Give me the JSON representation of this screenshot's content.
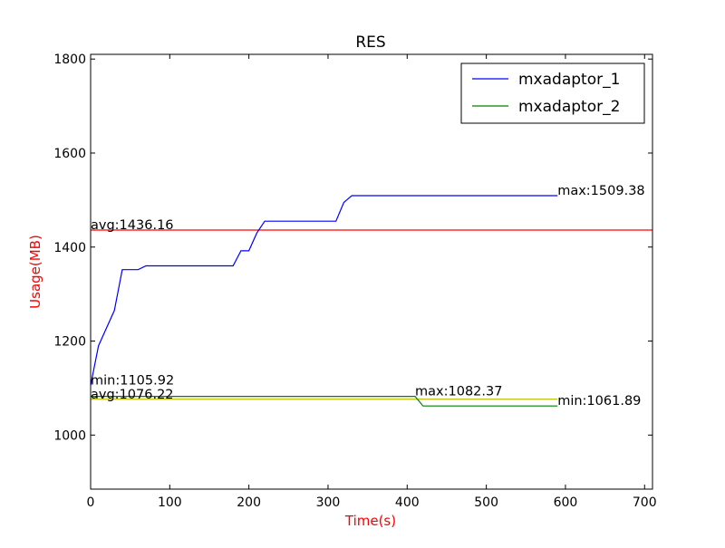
{
  "chart_data": {
    "type": "line",
    "title": "RES",
    "xlabel": "Time(s)",
    "ylabel": "Usage(MB)",
    "label_color": "#ff0000",
    "xlim": [
      0,
      710
    ],
    "ylim": [
      885,
      1810
    ],
    "xticks": [
      0,
      100,
      200,
      300,
      400,
      500,
      600,
      700
    ],
    "yticks": [
      1000,
      1200,
      1400,
      1600,
      1800
    ],
    "grid": false,
    "legend_position": "top-right",
    "series": [
      {
        "name": "mxadaptor_1",
        "color": "#0000ff",
        "x": [
          0,
          10,
          30,
          40,
          60,
          70,
          180,
          190,
          200,
          210,
          220,
          310,
          320,
          330,
          590
        ],
        "y": [
          1105.92,
          1190,
          1265,
          1352,
          1352,
          1360,
          1360,
          1392,
          1392,
          1430,
          1455,
          1455,
          1495,
          1509.38,
          1509.38
        ]
      },
      {
        "name": "mxadaptor_2",
        "color": "#008000",
        "x": [
          0,
          410,
          420,
          590
        ],
        "y": [
          1082.37,
          1082.37,
          1061.89,
          1061.89
        ]
      }
    ],
    "reference_lines": [
      {
        "value": 1436.16,
        "color": "#ff0000",
        "x_start": 0,
        "x_end": 710
      },
      {
        "value": 1076.22,
        "color": "#bfbf00",
        "x_start": 0,
        "x_end": 590
      }
    ],
    "annotations": [
      {
        "text": "avg:1436.16",
        "x": 0,
        "y": 1436.16
      },
      {
        "text": "max:1509.38",
        "x": 590,
        "y": 1509.38
      },
      {
        "text": "min:1105.92",
        "x": 0,
        "y": 1105.92
      },
      {
        "text": "avg:1076.22",
        "x": 0,
        "y": 1076.22
      },
      {
        "text": "max:1082.37",
        "x": 410,
        "y": 1082.37
      },
      {
        "text": "min:1061.89",
        "x": 590,
        "y": 1061.89
      }
    ]
  }
}
